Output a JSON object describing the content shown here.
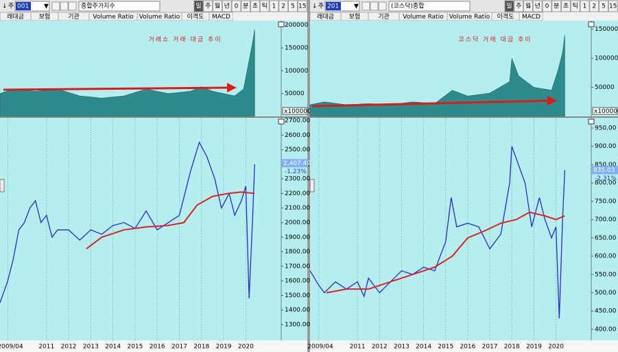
{
  "panels": [
    {
      "toolbar": {
        "type_label": "주",
        "code": "001",
        "name": "종합주가지수",
        "buttons": [
          "일",
          "주",
          "월",
          "년",
          "0",
          "분",
          "초",
          "틱",
          "1",
          "2",
          "5",
          "15"
        ]
      },
      "tabs": [
        "래대금",
        "보험",
        "기관",
        "Volume Ratio",
        "Volume Ratio",
        "이격도",
        "MACD"
      ],
      "volume_chart": {
        "title": "거래소 거래 대금 추이",
        "xlim": [
          2008.9,
          2021.6
        ],
        "ylim": [
          0,
          210000
        ],
        "yticks": [
          50000,
          100000,
          150000,
          200000
        ],
        "unit_label": "x100000",
        "color": "#2e8b8b",
        "x": [
          2008.9,
          2009.5,
          2010.5,
          2011.5,
          2012.5,
          2013.5,
          2014.5,
          2015.5,
          2016.5,
          2017.5,
          2018,
          2018.5,
          2019.5,
          2019.9,
          2020.1,
          2020.3,
          2020.4
        ],
        "values": [
          50000,
          60000,
          55000,
          60000,
          45000,
          40000,
          45000,
          60000,
          50000,
          55000,
          65000,
          55000,
          45000,
          60000,
          110000,
          160000,
          190000
        ]
      },
      "price_chart": {
        "xlim": [
          2008.9,
          2021.6
        ],
        "ylim": [
          1192,
          2719
        ],
        "grid": true,
        "yticks": [
          {
            "value": 2700,
            "label": "2700.00"
          },
          {
            "value": 2600,
            "label": "2600.00"
          },
          {
            "value": 2500,
            "label": "2500.00"
          },
          {
            "value": 2400,
            "label": "2400.00"
          },
          {
            "value": 2300,
            "label": "2300.00"
          },
          {
            "value": 2200,
            "label": "2200.00"
          },
          {
            "value": 2100,
            "label": "2100.00"
          },
          {
            "value": 2000,
            "label": "2000.00"
          },
          {
            "value": 1900,
            "label": "1900.00"
          },
          {
            "value": 1800,
            "label": "1800.00"
          },
          {
            "value": 1700,
            "label": "1700.00"
          },
          {
            "value": 1600,
            "label": "1600.00"
          },
          {
            "value": 1500,
            "label": "1500.00"
          },
          {
            "value": 1400,
            "label": "1400.00"
          },
          {
            "value": 1300,
            "label": "1300.00"
          }
        ],
        "xticks": [
          {
            "value": 2009.25,
            "label": "2009/04"
          },
          2011,
          2012,
          2013,
          2014,
          2015,
          2016,
          2017,
          2018,
          2019,
          2020
        ],
        "last_price": {
          "value": 2407.49,
          "label": "2,407.49"
        },
        "change": {
          "value": -1.23,
          "label": "-1.23%"
        },
        "series": [
          {
            "color": "#2828d8",
            "x": [
              2008.9,
              2009.25,
              2009.5,
              2009.75,
              2010,
              2010.25,
              2010.5,
              2010.75,
              2011,
              2011.25,
              2011.5,
              2012,
              2012.5,
              2013,
              2013.5,
              2014,
              2014.5,
              2015,
              2015.5,
              2016,
              2016.5,
              2017,
              2017.5,
              2017.9,
              2018.25,
              2018.6,
              2018.9,
              2019.25,
              2019.5,
              2019.8,
              2020,
              2020.15,
              2020.3,
              2020.4
            ],
            "values": [
              1450,
              1600,
              1750,
              1950,
              2000,
              2100,
              2150,
              2000,
              2050,
              1900,
              1950,
              1950,
              1880,
              1950,
              1920,
              1980,
              2000,
              1960,
              2080,
              1950,
              2000,
              2050,
              2350,
              2550,
              2450,
              2300,
              2100,
              2200,
              2050,
              2150,
              2250,
              1480,
              2000,
              2400
            ]
          },
          {
            "color": "#e02020",
            "x": [
              2012.8,
              2013.5,
              2014.5,
              2015.5,
              2016.5,
              2017.2,
              2017.8,
              2018.5,
              2019.2,
              2019.8,
              2020.4
            ],
            "values": [
              1820,
              1900,
              1950,
              1970,
              1980,
              2000,
              2120,
              2180,
              2200,
              2210,
              2200
            ]
          }
        ]
      }
    },
    {
      "toolbar": {
        "type_label": "주",
        "code": "201",
        "name": "(코스닥)종합",
        "buttons": [
          "일",
          "주",
          "월",
          "년",
          "0",
          "분",
          "초",
          "틱",
          "1",
          "2",
          "5",
          "15"
        ]
      },
      "tabs": [
        "래대금",
        "보험",
        "기관",
        "Volume Ratio",
        "Volume Ratio",
        "이격도",
        "MACD"
      ],
      "volume_chart": {
        "title": "코스닥 거래 대금 추이",
        "xlim": [
          2008.85,
          2021.6
        ],
        "ylim": [
          0,
          165000
        ],
        "yticks": [
          50000,
          100000,
          150000
        ],
        "unit_label": "x100000",
        "color": "#2e8b8b",
        "x": [
          2008.85,
          2009.5,
          2010.5,
          2011.5,
          2012.5,
          2013.5,
          2014.5,
          2015.3,
          2016,
          2017,
          2017.9,
          2018,
          2018.3,
          2019,
          2019.8,
          2020.1,
          2020.3,
          2020.4
        ],
        "values": [
          20000,
          25000,
          20000,
          22000,
          20000,
          25000,
          22000,
          45000,
          35000,
          40000,
          60000,
          100000,
          70000,
          50000,
          45000,
          80000,
          110000,
          140000
        ]
      },
      "price_chart": {
        "xlim": [
          2008.85,
          2021.6
        ],
        "ylim": [
          370,
          978
        ],
        "grid": true,
        "yticks": [
          {
            "value": 950,
            "label": "950.00"
          },
          {
            "value": 900,
            "label": "900.00"
          },
          {
            "value": 850,
            "label": "850.00"
          },
          {
            "value": 800,
            "label": "800.00"
          },
          {
            "value": 750,
            "label": "750.00"
          },
          {
            "value": 700,
            "label": "700.00"
          },
          {
            "value": 650,
            "label": "650.00"
          },
          {
            "value": 600,
            "label": "600.00"
          },
          {
            "value": 550,
            "label": "550.00"
          },
          {
            "value": 500,
            "label": "500.00"
          },
          {
            "value": 450,
            "label": "450.00"
          },
          {
            "value": 400,
            "label": "400.00"
          }
        ],
        "xticks": [
          {
            "value": 2009.25,
            "label": "2009/04"
          },
          2011,
          2012,
          2013,
          2014,
          2015,
          2016,
          2017,
          2018,
          2019,
          2020
        ],
        "last_price": {
          "value": 835.03,
          "label": "835.03"
        },
        "change": {
          "value": -2.31,
          "label": "-2.31%"
        },
        "series": [
          {
            "color": "#2828d8",
            "x": [
              2008.85,
              2009.25,
              2009.5,
              2010,
              2010.5,
              2011,
              2011.3,
              2011.5,
              2012,
              2012.5,
              2013,
              2013.5,
              2014,
              2014.5,
              2015,
              2015.25,
              2015.5,
              2016,
              2016.5,
              2017,
              2017.5,
              2017.9,
              2018,
              2018.3,
              2018.6,
              2018.9,
              2019.25,
              2019.5,
              2019.8,
              2020,
              2020.15,
              2020.3,
              2020.4
            ],
            "values": [
              560,
              520,
              500,
              530,
              510,
              530,
              490,
              540,
              500,
              530,
              560,
              550,
              570,
              560,
              640,
              760,
              680,
              690,
              680,
              620,
              660,
              800,
              900,
              850,
              800,
              680,
              760,
              700,
              650,
              680,
              430,
              700,
              835
            ]
          },
          {
            "color": "#e02020",
            "x": [
              2009.6,
              2010.5,
              2011.5,
              2012.5,
              2013.5,
              2014.5,
              2015.3,
              2016,
              2016.8,
              2017.5,
              2018.2,
              2018.8,
              2019.5,
              2020,
              2020.4
            ],
            "values": [
              500,
              510,
              510,
              530,
              550,
              570,
              600,
              650,
              670,
              690,
              700,
              720,
              710,
              700,
              710
            ]
          }
        ]
      }
    }
  ]
}
